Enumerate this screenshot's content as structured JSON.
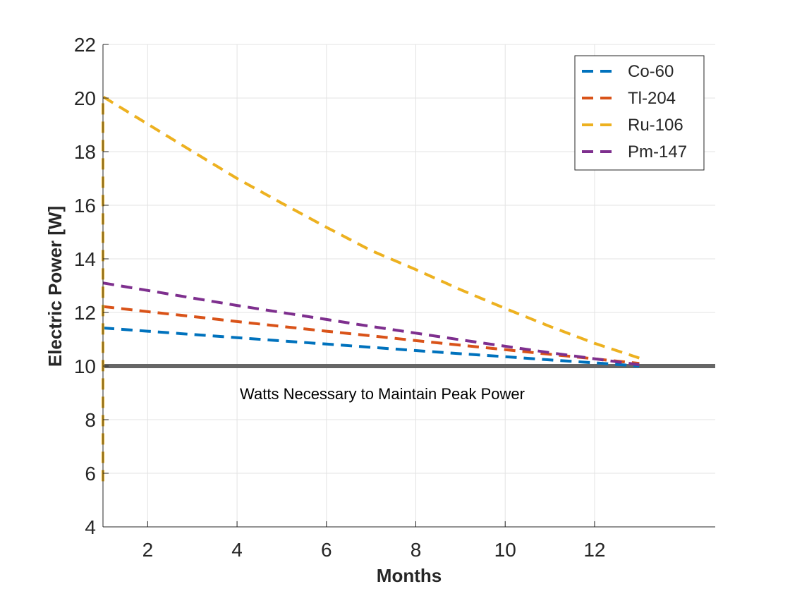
{
  "chart_data": {
    "type": "line",
    "title": "",
    "xlabel": "Months",
    "ylabel": "Electric Power [W]",
    "xlim": [
      1,
      14.7
    ],
    "ylim": [
      4,
      22
    ],
    "xticks": [
      2,
      4,
      6,
      8,
      10,
      12
    ],
    "yticks": [
      4,
      6,
      8,
      10,
      12,
      14,
      16,
      18,
      20,
      22
    ],
    "grid": true,
    "legend_position": "top-right",
    "line_style": "dashed",
    "series": [
      {
        "name": "Co-60",
        "color": "#0072BD",
        "x": [
          1,
          2,
          3,
          4,
          5,
          6,
          7,
          8,
          9,
          10,
          11,
          12,
          13
        ],
        "y": [
          11.42,
          11.3,
          11.18,
          11.06,
          10.94,
          10.82,
          10.7,
          10.58,
          10.46,
          10.35,
          10.23,
          10.12,
          10.0
        ]
      },
      {
        "name": "Tl-204",
        "color": "#D95319",
        "x": [
          1,
          2,
          3,
          4,
          5,
          6,
          7,
          8,
          9,
          10,
          11,
          12,
          13
        ],
        "y": [
          12.22,
          12.03,
          11.85,
          11.66,
          11.48,
          11.3,
          11.13,
          10.95,
          10.78,
          10.61,
          10.44,
          10.27,
          10.1
        ]
      },
      {
        "name": "Ru-106",
        "color": "#EDB120",
        "x": [
          1,
          1,
          2,
          3,
          4,
          5,
          6,
          7,
          8,
          9,
          10,
          11,
          12,
          13
        ],
        "y": [
          5.7,
          20.05,
          19.03,
          18.01,
          17.0,
          16.08,
          15.18,
          14.31,
          13.6,
          12.85,
          12.15,
          11.48,
          10.85,
          10.3
        ]
      },
      {
        "name": "Pm-147",
        "color": "#7E2F8E",
        "x": [
          1,
          2,
          3,
          4,
          5,
          6,
          7,
          8,
          9,
          10,
          11,
          12,
          13
        ],
        "y": [
          13.1,
          12.82,
          12.54,
          12.26,
          12.0,
          11.74,
          11.48,
          11.23,
          10.98,
          10.74,
          10.5,
          10.27,
          10.05
        ]
      }
    ],
    "reference_line": {
      "y": 10,
      "color": "#666666",
      "label": "Watts Necessary to Maintain Peak Power"
    }
  }
}
